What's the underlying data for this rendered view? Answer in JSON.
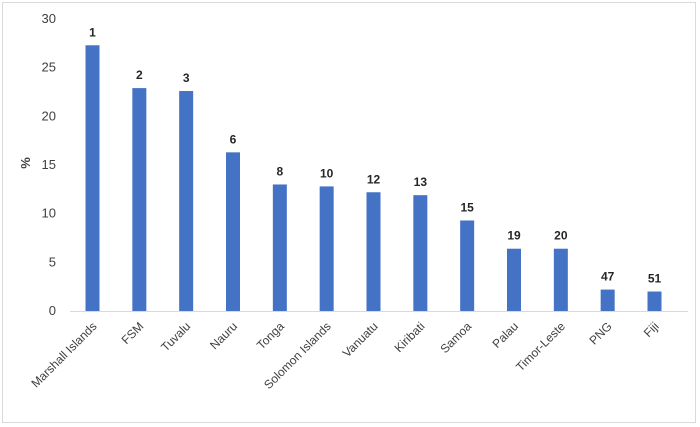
{
  "chart_data": {
    "type": "bar",
    "title": "",
    "xlabel": "",
    "ylabel": "%",
    "ylim": [
      0,
      30
    ],
    "yticks": [
      0,
      5,
      10,
      15,
      20,
      25,
      30
    ],
    "grid": false,
    "legend": "none",
    "bar_color": "#4472c4",
    "categories": [
      "Marshall Islands",
      "FSM",
      "Tuvalu",
      "Nauru",
      "Tonga",
      "Solomon Islands",
      "Vanuatu",
      "Kiribati",
      "Samoa",
      "Palau",
      "Timor-Leste",
      "PNG",
      "Fiji"
    ],
    "values": [
      27.3,
      22.9,
      22.6,
      16.3,
      13.0,
      12.8,
      12.2,
      11.9,
      9.3,
      6.4,
      6.4,
      2.2,
      2.0
    ],
    "data_labels": [
      "1",
      "2",
      "3",
      "6",
      "8",
      "10",
      "12",
      "13",
      "15",
      "19",
      "20",
      "47",
      "51"
    ]
  }
}
